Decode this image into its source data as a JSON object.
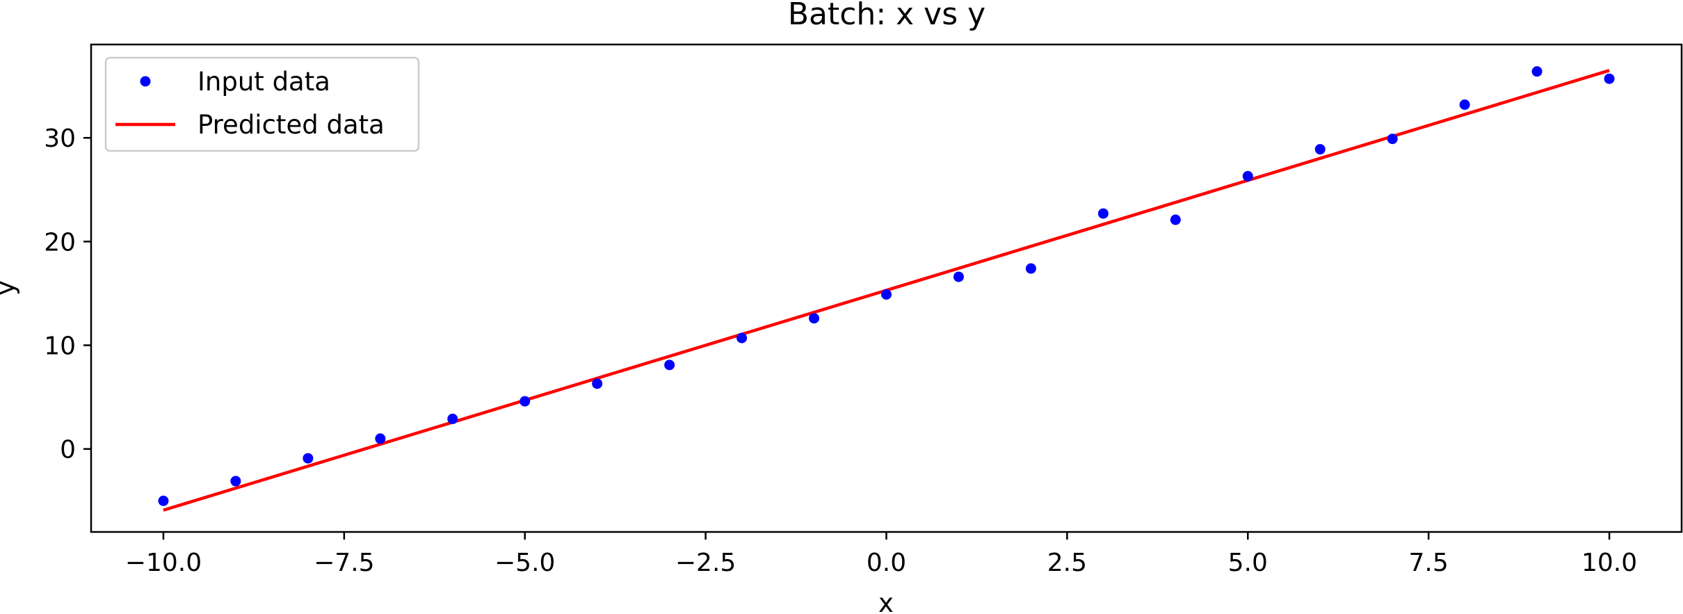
{
  "chart_data": {
    "type": "scatter",
    "title": "Batch: x vs y",
    "xlabel": "x",
    "ylabel": "y",
    "xlim": [
      -11.0,
      11.0
    ],
    "ylim": [
      -8.0,
      39.0
    ],
    "xticks": [
      -10.0,
      -7.5,
      -5.0,
      -2.5,
      0.0,
      2.5,
      5.0,
      7.5,
      10.0
    ],
    "xtick_labels": [
      "−10.0",
      "−7.5",
      "−5.0",
      "−2.5",
      "0.0",
      "2.5",
      "5.0",
      "7.5",
      "10.0"
    ],
    "yticks": [
      0,
      10,
      20,
      30
    ],
    "ytick_labels": [
      "0",
      "10",
      "20",
      "30"
    ],
    "grid": false,
    "legend": {
      "position": "top-left",
      "entries": [
        {
          "label": "Input data",
          "kind": "marker",
          "color": "#0000ff"
        },
        {
          "label": "Predicted data",
          "kind": "line",
          "color": "#ff0000"
        }
      ]
    },
    "series": [
      {
        "name": "Input data",
        "kind": "scatter",
        "color": "#0000ff",
        "x": [
          -10,
          -9,
          -8,
          -7,
          -6,
          -5,
          -4,
          -3,
          -2,
          -1,
          0,
          1,
          2,
          3,
          4,
          5,
          6,
          7,
          8,
          9,
          10
        ],
        "y": [
          -5.0,
          -3.1,
          -0.9,
          1.0,
          2.9,
          4.6,
          6.3,
          8.1,
          10.7,
          12.6,
          14.9,
          16.6,
          17.4,
          22.7,
          22.1,
          26.3,
          28.9,
          29.9,
          33.2,
          36.4,
          35.7
        ]
      },
      {
        "name": "Predicted data",
        "kind": "line",
        "color": "#ff0000",
        "x": [
          -10,
          10
        ],
        "y": [
          -5.9,
          36.5
        ]
      }
    ]
  }
}
